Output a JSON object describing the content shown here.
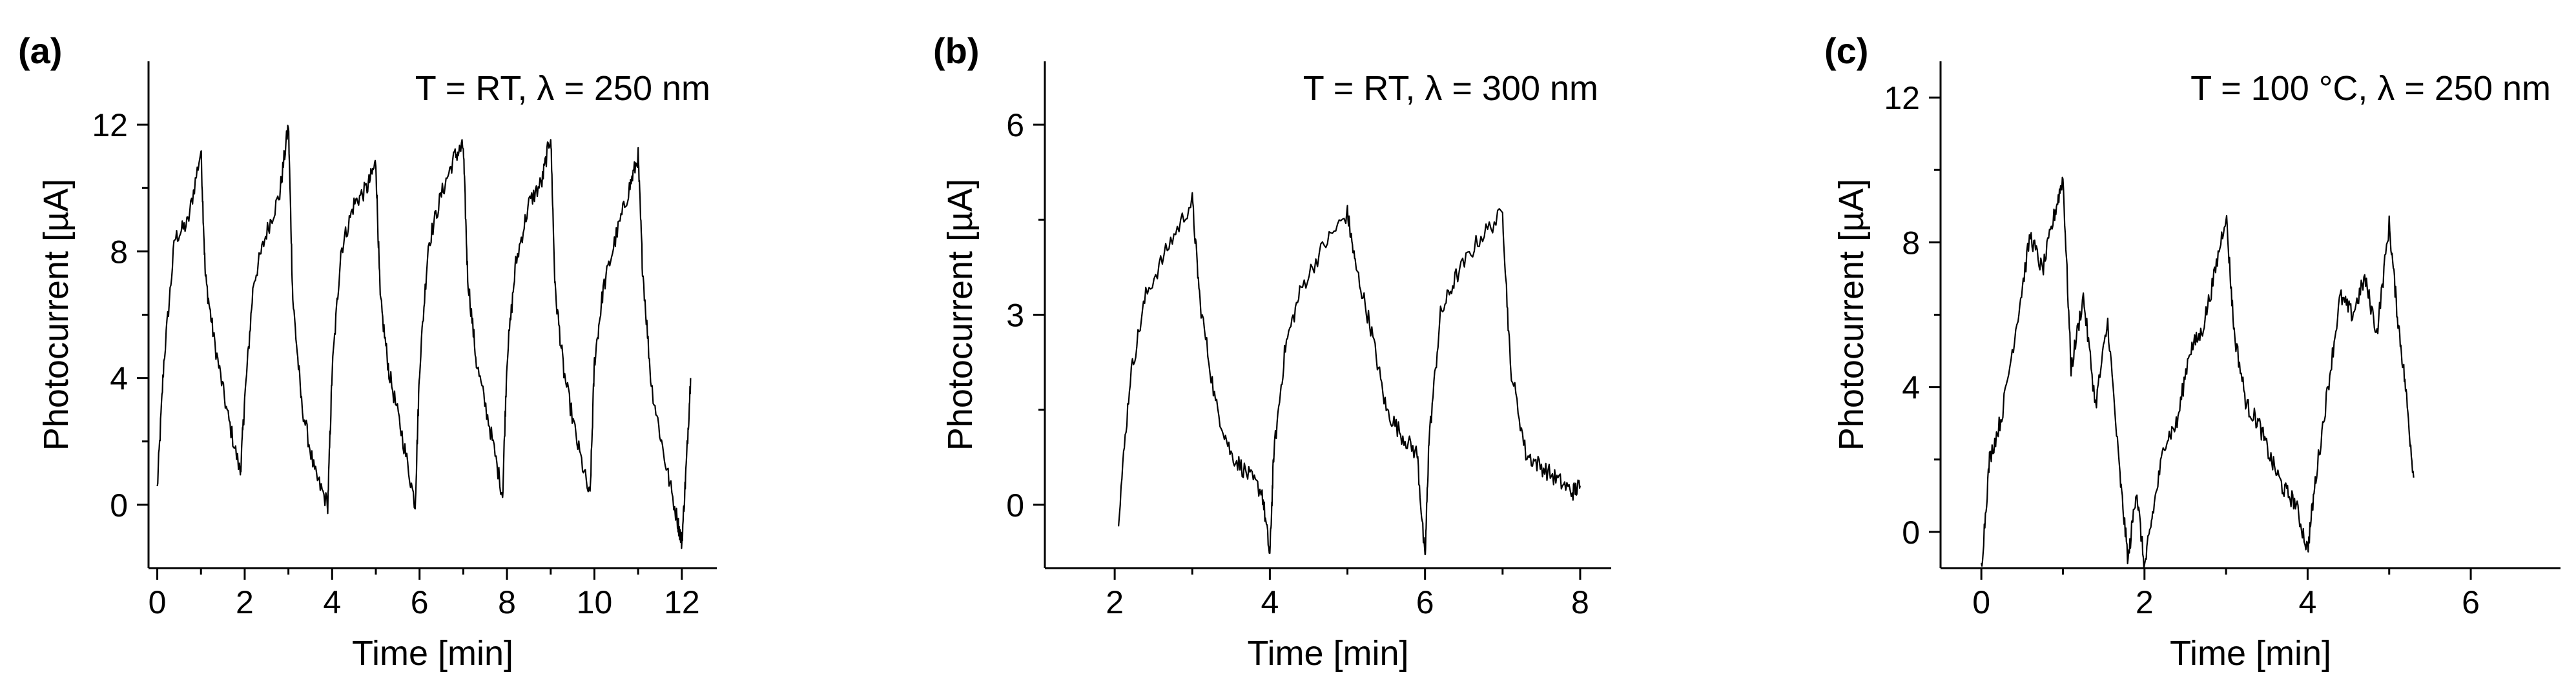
{
  "figure": {
    "caption_panels": [
      "(a)",
      "(b)",
      "(c)"
    ]
  },
  "chart_data": [
    {
      "type": "line",
      "panel_label": "(a)",
      "annotation": "T = RT,  λ = 250 nm",
      "xlabel": "Time [min]",
      "ylabel": "Photocurrent [µA]",
      "xlim": [
        -0.2,
        12.8
      ],
      "ylim": [
        -2,
        14
      ],
      "xticks": [
        0,
        2,
        4,
        6,
        8,
        10,
        12
      ],
      "yticks": [
        0,
        4,
        8,
        12
      ],
      "series": [
        {
          "name": "photocurrent",
          "x": [
            0,
            0.15,
            0.4,
            0.7,
            1.0,
            1.1,
            1.3,
            1.6,
            1.9,
            2.0,
            2.2,
            2.5,
            2.8,
            3.0,
            3.1,
            3.3,
            3.6,
            3.9,
            4.0,
            4.2,
            4.5,
            4.8,
            5.0,
            5.1,
            5.3,
            5.6,
            5.9,
            6.0,
            6.2,
            6.5,
            6.8,
            7.0,
            7.1,
            7.3,
            7.6,
            7.9,
            8.0,
            8.2,
            8.5,
            8.8,
            9.0,
            9.1,
            9.3,
            9.6,
            9.9,
            10.0,
            10.2,
            10.5,
            10.8,
            11.0,
            11.1,
            11.3,
            11.6,
            11.9,
            12.0,
            12.1,
            12.2
          ],
          "y": [
            0.5,
            4.5,
            8.4,
            8.9,
            11.2,
            7.2,
            5.2,
            2.9,
            1.0,
            3.3,
            7.0,
            8.6,
            9.8,
            12.0,
            6.5,
            3.2,
            1.0,
            0.0,
            4.2,
            8.0,
            9.5,
            10.0,
            10.8,
            6.5,
            4.2,
            2.2,
            0.0,
            4.3,
            8.2,
            9.8,
            11.0,
            11.3,
            7.2,
            4.5,
            2.5,
            0.3,
            4.6,
            7.6,
            9.5,
            10.2,
            11.7,
            6.8,
            4.2,
            2.0,
            0.2,
            4.5,
            6.8,
            8.5,
            10.0,
            11.0,
            7.5,
            3.8,
            1.5,
            -0.5,
            -1.2,
            1.2,
            4.0
          ]
        }
      ]
    },
    {
      "type": "line",
      "panel_label": "(b)",
      "annotation": "T = RT, λ = 300 nm",
      "xlabel": "Time [min]",
      "ylabel": "Photocurrent [µA]",
      "xlim": [
        1.1,
        8.4
      ],
      "ylim": [
        -1,
        7
      ],
      "xticks": [
        2,
        4,
        6,
        8
      ],
      "yticks": [
        0,
        3,
        6
      ],
      "series": [
        {
          "name": "photocurrent",
          "x": [
            2.05,
            2.2,
            2.4,
            2.7,
            3.0,
            3.1,
            3.3,
            3.5,
            3.7,
            3.9,
            4.0,
            4.05,
            4.2,
            4.4,
            4.7,
            5.0,
            5.1,
            5.3,
            5.5,
            5.7,
            5.9,
            6.0,
            6.05,
            6.2,
            6.4,
            6.7,
            7.0,
            7.1,
            7.3,
            7.5,
            7.7,
            7.9,
            8.0
          ],
          "y": [
            -0.2,
            2.0,
            3.3,
            4.1,
            4.8,
            3.2,
            1.6,
            0.8,
            0.5,
            0.2,
            -0.8,
            0.8,
            2.5,
            3.4,
            4.1,
            4.6,
            3.8,
            2.8,
            1.5,
            1.1,
            0.8,
            -0.9,
            1.0,
            3.0,
            3.6,
            4.2,
            4.6,
            2.2,
            0.8,
            0.6,
            0.4,
            0.2,
            0.3
          ]
        }
      ]
    },
    {
      "type": "line",
      "panel_label": "(c)",
      "annotation": "T = 100 °C, λ = 250 nm",
      "xlabel": "Time [min]",
      "ylabel": "Photocurrent [µA]",
      "xlim": [
        -0.5,
        7.1
      ],
      "ylim": [
        -1,
        13
      ],
      "xticks": [
        0,
        2,
        4,
        6
      ],
      "yticks": [
        0,
        4,
        8,
        12
      ],
      "series": [
        {
          "name": "photocurrent",
          "x": [
            0,
            0.1,
            0.25,
            0.45,
            0.6,
            0.75,
            0.9,
            1.0,
            1.1,
            1.25,
            1.4,
            1.55,
            1.7,
            1.8,
            1.9,
            2.0,
            2.1,
            2.25,
            2.4,
            2.55,
            2.7,
            2.85,
            3.0,
            3.1,
            3.25,
            3.4,
            3.55,
            3.7,
            3.85,
            4.0,
            4.1,
            4.25,
            4.4,
            4.55,
            4.7,
            4.85,
            5.0,
            5.1,
            5.2,
            5.3
          ],
          "y": [
            -1.0,
            2.0,
            3.2,
            6.0,
            8.2,
            7.2,
            8.8,
            9.8,
            4.5,
            6.5,
            3.5,
            5.8,
            1.5,
            -0.8,
            1.2,
            -1.0,
            0.5,
            2.5,
            3.0,
            5.0,
            5.5,
            7.0,
            8.8,
            5.5,
            3.5,
            3.0,
            2.0,
            1.2,
            0.8,
            -0.5,
            1.5,
            4.0,
            6.5,
            6.0,
            7.0,
            5.5,
            8.5,
            6.0,
            4.0,
            1.5
          ]
        }
      ]
    }
  ]
}
